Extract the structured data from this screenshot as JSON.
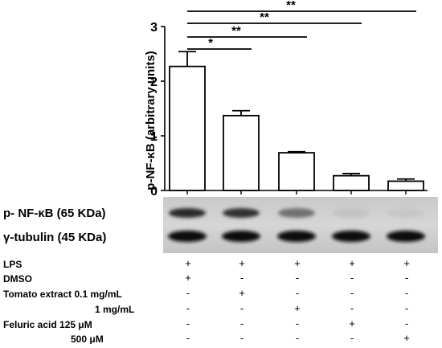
{
  "chart_data": {
    "type": "bar",
    "ylabel": "p-NF-κB (arbitrary units)",
    "ylim": [
      0,
      3
    ],
    "yticks": [
      0,
      1,
      2,
      3
    ],
    "grid": false,
    "values": [
      2.27,
      1.37,
      0.69,
      0.27,
      0.17
    ],
    "errors": [
      0.27,
      0.09,
      0.02,
      0.04,
      0.04
    ],
    "significance": [
      {
        "from": 0,
        "to": 1,
        "label": "*"
      },
      {
        "from": 0,
        "to": 2,
        "label": "**"
      },
      {
        "from": 0,
        "to": 3,
        "label": "**"
      },
      {
        "from": 0,
        "to": 4,
        "label": "**"
      }
    ]
  },
  "blot": {
    "rows": [
      {
        "label": "p- NF-κB (65 KDa)",
        "intensities": [
          0.85,
          0.8,
          0.5,
          0.1,
          0.08
        ]
      },
      {
        "label": "γ-tubulin (45 KDa)",
        "intensities": [
          1.0,
          1.0,
          1.0,
          1.0,
          1.0
        ]
      }
    ]
  },
  "treatments": {
    "rows": [
      {
        "label": "LPS",
        "marks": [
          "+",
          "+",
          "+",
          "+",
          "+"
        ]
      },
      {
        "label": "DMSO",
        "marks": [
          "+",
          "-",
          "-",
          "-",
          "-"
        ]
      },
      {
        "label": "Tomato extract  0.1 mg/mL",
        "marks": [
          "-",
          "+",
          "-",
          "-",
          "-"
        ]
      },
      {
        "label": "1 mg/mL",
        "marks": [
          "-",
          "-",
          "+",
          "-",
          "-"
        ]
      },
      {
        "label": "Feluric acid 125 μM",
        "marks": [
          "-",
          "-",
          "-",
          "+",
          "-"
        ]
      },
      {
        "label": "500 μM",
        "marks": [
          "-",
          "-",
          "-",
          "-",
          "+"
        ]
      }
    ]
  }
}
